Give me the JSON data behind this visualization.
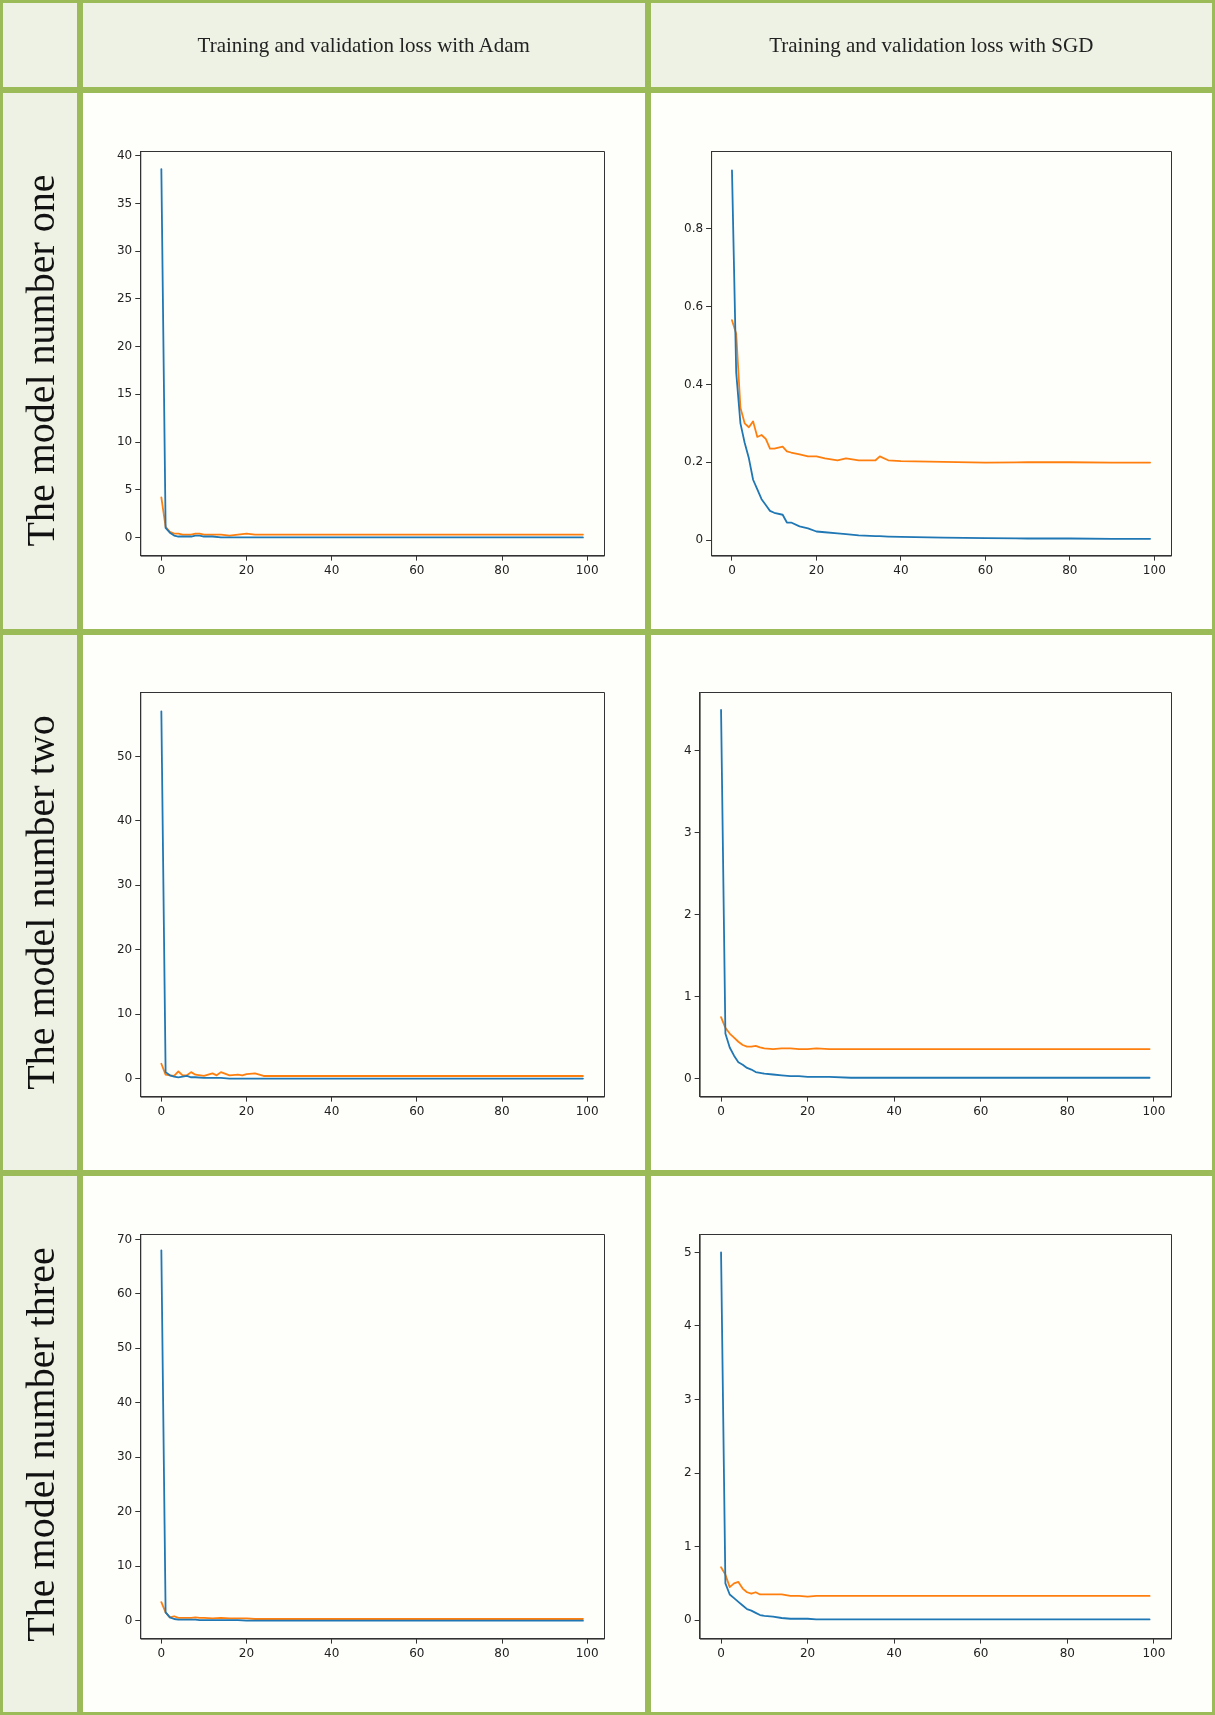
{
  "chart_data": [
    {
      "type": "line",
      "title": "Training and validation loss with Adam",
      "annotations": [
        "The model number one"
      ],
      "x": [
        0,
        1,
        2,
        3,
        4,
        5,
        6,
        7,
        8,
        9,
        10,
        12,
        14,
        16,
        18,
        20,
        22,
        25,
        30,
        35,
        40,
        50,
        60,
        70,
        80,
        90,
        99
      ],
      "xlim": [
        -4.95,
        103.95
      ],
      "xticks": [
        0,
        20,
        40,
        60,
        80,
        100
      ],
      "ylim": [
        -1.9,
        40.5
      ],
      "yticks": [
        0,
        5,
        10,
        15,
        20,
        25,
        30,
        35,
        40
      ],
      "series": [
        {
          "color": "#1f77b4",
          "values": [
            38.6,
            1,
            0.5,
            0.2,
            0.1,
            0.1,
            0.1,
            0.1,
            0.2,
            0.2,
            0.1,
            0.1,
            0,
            0,
            0,
            0,
            0,
            0,
            0,
            0,
            0,
            0,
            0,
            0,
            0,
            0,
            0
          ]
        },
        {
          "color": "#ff7f0e",
          "values": [
            4.2,
            1.1,
            0.6,
            0.4,
            0.4,
            0.3,
            0.3,
            0.3,
            0.4,
            0.4,
            0.3,
            0.3,
            0.3,
            0.2,
            0.3,
            0.4,
            0.3,
            0.3,
            0.3,
            0.3,
            0.3,
            0.3,
            0.3,
            0.3,
            0.3,
            0.3,
            0.3
          ]
        }
      ]
    },
    {
      "type": "line",
      "title": "Training and validation loss with SGD",
      "x": [
        0,
        1,
        2,
        3,
        4,
        5,
        6,
        7,
        8,
        9,
        10,
        12,
        13,
        14,
        16,
        18,
        20,
        22,
        25,
        27,
        30,
        34,
        35,
        37,
        40,
        50,
        60,
        70,
        80,
        90,
        99
      ],
      "xlim": [
        -4.95,
        103.95
      ],
      "xticks": [
        0,
        20,
        40,
        60,
        80,
        100
      ],
      "ylim": [
        -0.04,
        1.0
      ],
      "yticks": [
        0,
        0.2,
        0.4,
        0.6,
        0.8
      ],
      "series": [
        {
          "color": "#1f77b4",
          "values": [
            0.95,
            0.43,
            0.3,
            0.25,
            0.21,
            0.155,
            0.13,
            0.105,
            0.09,
            0.075,
            0.07,
            0.065,
            0.045,
            0.045,
            0.035,
            0.03,
            0.022,
            0.02,
            0.017,
            0.015,
            0.012,
            0.01,
            0.01,
            0.009,
            0.008,
            0.006,
            0.005,
            0.004,
            0.004,
            0.003,
            0.003
          ]
        },
        {
          "color": "#ff7f0e",
          "values": [
            0.565,
            0.53,
            0.34,
            0.3,
            0.29,
            0.305,
            0.265,
            0.27,
            0.26,
            0.235,
            0.235,
            0.24,
            0.228,
            0.225,
            0.22,
            0.215,
            0.215,
            0.21,
            0.205,
            0.21,
            0.205,
            0.205,
            0.215,
            0.205,
            0.203,
            0.201,
            0.199,
            0.2,
            0.2,
            0.199,
            0.199
          ]
        }
      ]
    },
    {
      "type": "line",
      "annotations": [
        "The model number two"
      ],
      "x": [
        0,
        1,
        2,
        3,
        4,
        5,
        6,
        7,
        8,
        10,
        12,
        13,
        14,
        16,
        18,
        19,
        20,
        22,
        24,
        30,
        40,
        50,
        60,
        70,
        80,
        90,
        99
      ],
      "xlim": [
        -4.95,
        103.95
      ],
      "xticks": [
        0,
        20,
        40,
        60,
        80,
        100
      ],
      "ylim": [
        -2.8,
        60
      ],
      "yticks": [
        0,
        10,
        20,
        30,
        40,
        50
      ],
      "series": [
        {
          "color": "#1f77b4",
          "values": [
            57,
            1,
            0.5,
            0.3,
            0.2,
            0.3,
            0.4,
            0.2,
            0.2,
            0.1,
            0.1,
            0.1,
            0.1,
            0,
            0,
            0,
            0,
            0,
            0,
            0,
            0,
            0,
            0,
            0,
            0,
            0,
            0
          ]
        },
        {
          "color": "#ff7f0e",
          "values": [
            2.3,
            0.6,
            0.5,
            0.4,
            1.1,
            0.5,
            0.5,
            1,
            0.6,
            0.4,
            0.8,
            0.5,
            1,
            0.5,
            0.6,
            0.5,
            0.7,
            0.8,
            0.4,
            0.4,
            0.4,
            0.4,
            0.4,
            0.4,
            0.4,
            0.4,
            0.4
          ]
        }
      ]
    },
    {
      "type": "line",
      "x": [
        0,
        1,
        2,
        3,
        4,
        5,
        6,
        7,
        8,
        9,
        10,
        12,
        14,
        16,
        18,
        20,
        22,
        25,
        30,
        35,
        40,
        50,
        60,
        70,
        80,
        90,
        99
      ],
      "xlim": [
        -4.95,
        103.95
      ],
      "xticks": [
        0,
        20,
        40,
        60,
        80,
        100
      ],
      "ylim": [
        -0.22,
        4.72
      ],
      "yticks": [
        0,
        1,
        2,
        3,
        4
      ],
      "series": [
        {
          "color": "#1f77b4",
          "values": [
            4.5,
            0.55,
            0.38,
            0.28,
            0.2,
            0.17,
            0.13,
            0.11,
            0.08,
            0.07,
            0.06,
            0.05,
            0.04,
            0.03,
            0.03,
            0.02,
            0.02,
            0.02,
            0.01,
            0.01,
            0.01,
            0.01,
            0.01,
            0.01,
            0.01,
            0.01,
            0.01
          ]
        },
        {
          "color": "#ff7f0e",
          "values": [
            0.75,
            0.62,
            0.55,
            0.5,
            0.45,
            0.41,
            0.39,
            0.39,
            0.4,
            0.38,
            0.37,
            0.36,
            0.37,
            0.37,
            0.36,
            0.36,
            0.37,
            0.36,
            0.36,
            0.36,
            0.36,
            0.36,
            0.36,
            0.36,
            0.36,
            0.36,
            0.36
          ]
        }
      ]
    },
    {
      "type": "line",
      "annotations": [
        "The model number three"
      ],
      "x": [
        0,
        1,
        2,
        3,
        4,
        5,
        6,
        7,
        8,
        9,
        10,
        12,
        14,
        16,
        18,
        20,
        22,
        25,
        30,
        35,
        40,
        50,
        60,
        70,
        80,
        90,
        99
      ],
      "xlim": [
        -4.95,
        103.95
      ],
      "xticks": [
        0,
        20,
        40,
        60,
        80,
        100
      ],
      "ylim": [
        -3.3,
        71
      ],
      "yticks": [
        0,
        10,
        20,
        30,
        40,
        50,
        60,
        70
      ],
      "series": [
        {
          "color": "#1f77b4",
          "values": [
            68,
            1.5,
            0.6,
            0.3,
            0.2,
            0.2,
            0.2,
            0.2,
            0.2,
            0.1,
            0.1,
            0.1,
            0.1,
            0.1,
            0.1,
            0,
            0,
            0,
            0,
            0,
            0,
            0,
            0,
            0,
            0,
            0,
            0
          ]
        },
        {
          "color": "#ff7f0e",
          "values": [
            3.4,
            1.5,
            0.6,
            0.8,
            0.5,
            0.5,
            0.5,
            0.5,
            0.6,
            0.5,
            0.5,
            0.4,
            0.5,
            0.4,
            0.4,
            0.4,
            0.3,
            0.3,
            0.3,
            0.3,
            0.3,
            0.3,
            0.3,
            0.3,
            0.3,
            0.3,
            0.3
          ]
        }
      ]
    },
    {
      "type": "line",
      "x": [
        0,
        1,
        2,
        3,
        4,
        5,
        6,
        7,
        8,
        9,
        10,
        12,
        14,
        16,
        18,
        20,
        22,
        25,
        30,
        35,
        40,
        50,
        60,
        70,
        80,
        90,
        99
      ],
      "xlim": [
        -4.95,
        103.95
      ],
      "xticks": [
        0,
        20,
        40,
        60,
        80,
        100
      ],
      "ylim": [
        -0.25,
        5.25
      ],
      "yticks": [
        0,
        1,
        2,
        3,
        4,
        5
      ],
      "series": [
        {
          "color": "#1f77b4",
          "values": [
            5,
            0.5,
            0.35,
            0.3,
            0.25,
            0.2,
            0.15,
            0.13,
            0.1,
            0.07,
            0.06,
            0.05,
            0.03,
            0.02,
            0.02,
            0.02,
            0.01,
            0.01,
            0.01,
            0.01,
            0.01,
            0.01,
            0.01,
            0.01,
            0.01,
            0.01,
            0.01
          ]
        },
        {
          "color": "#ff7f0e",
          "values": [
            0.72,
            0.62,
            0.45,
            0.5,
            0.52,
            0.43,
            0.38,
            0.36,
            0.38,
            0.35,
            0.35,
            0.35,
            0.35,
            0.33,
            0.33,
            0.32,
            0.33,
            0.33,
            0.33,
            0.33,
            0.33,
            0.33,
            0.33,
            0.33,
            0.33,
            0.33,
            0.33
          ]
        }
      ]
    }
  ]
}
